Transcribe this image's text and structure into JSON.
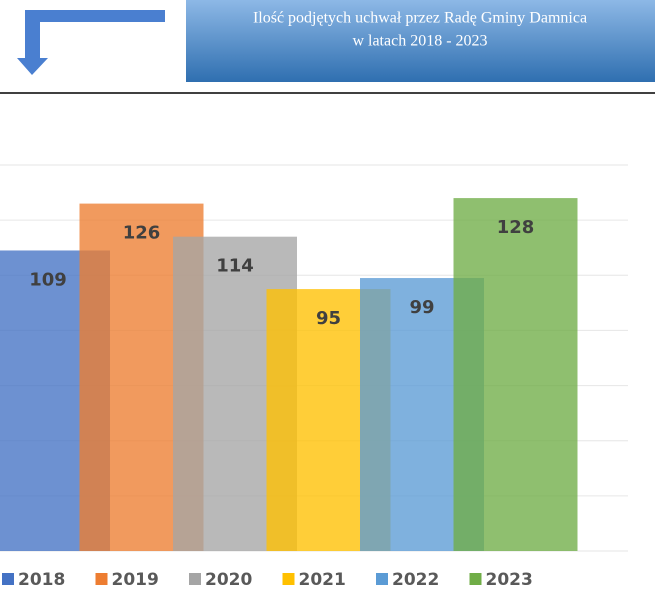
{
  "chart_data": {
    "type": "bar",
    "title": "Ilość podjętych uchwał przez Radę Gminy Damnica",
    "subtitle": "w latach 2018 - 2023",
    "series": [
      {
        "name": "2018",
        "color": "#4472c4",
        "values": [
          109
        ]
      },
      {
        "name": "2019",
        "color": "#ed7d31",
        "values": [
          126
        ]
      },
      {
        "name": "2020",
        "color": "#a5a5a5",
        "values": [
          114
        ]
      },
      {
        "name": "2021",
        "color": "#ffc000",
        "values": [
          95
        ]
      },
      {
        "name": "2022",
        "color": "#5b9bd5",
        "values": [
          99
        ]
      },
      {
        "name": "2023",
        "color": "#70ad47",
        "values": [
          128
        ]
      }
    ],
    "ylim": [
      0,
      140
    ],
    "yticks": [
      0,
      20,
      40,
      60,
      80,
      100,
      120,
      140
    ],
    "grid": true,
    "legend": "bottom"
  }
}
